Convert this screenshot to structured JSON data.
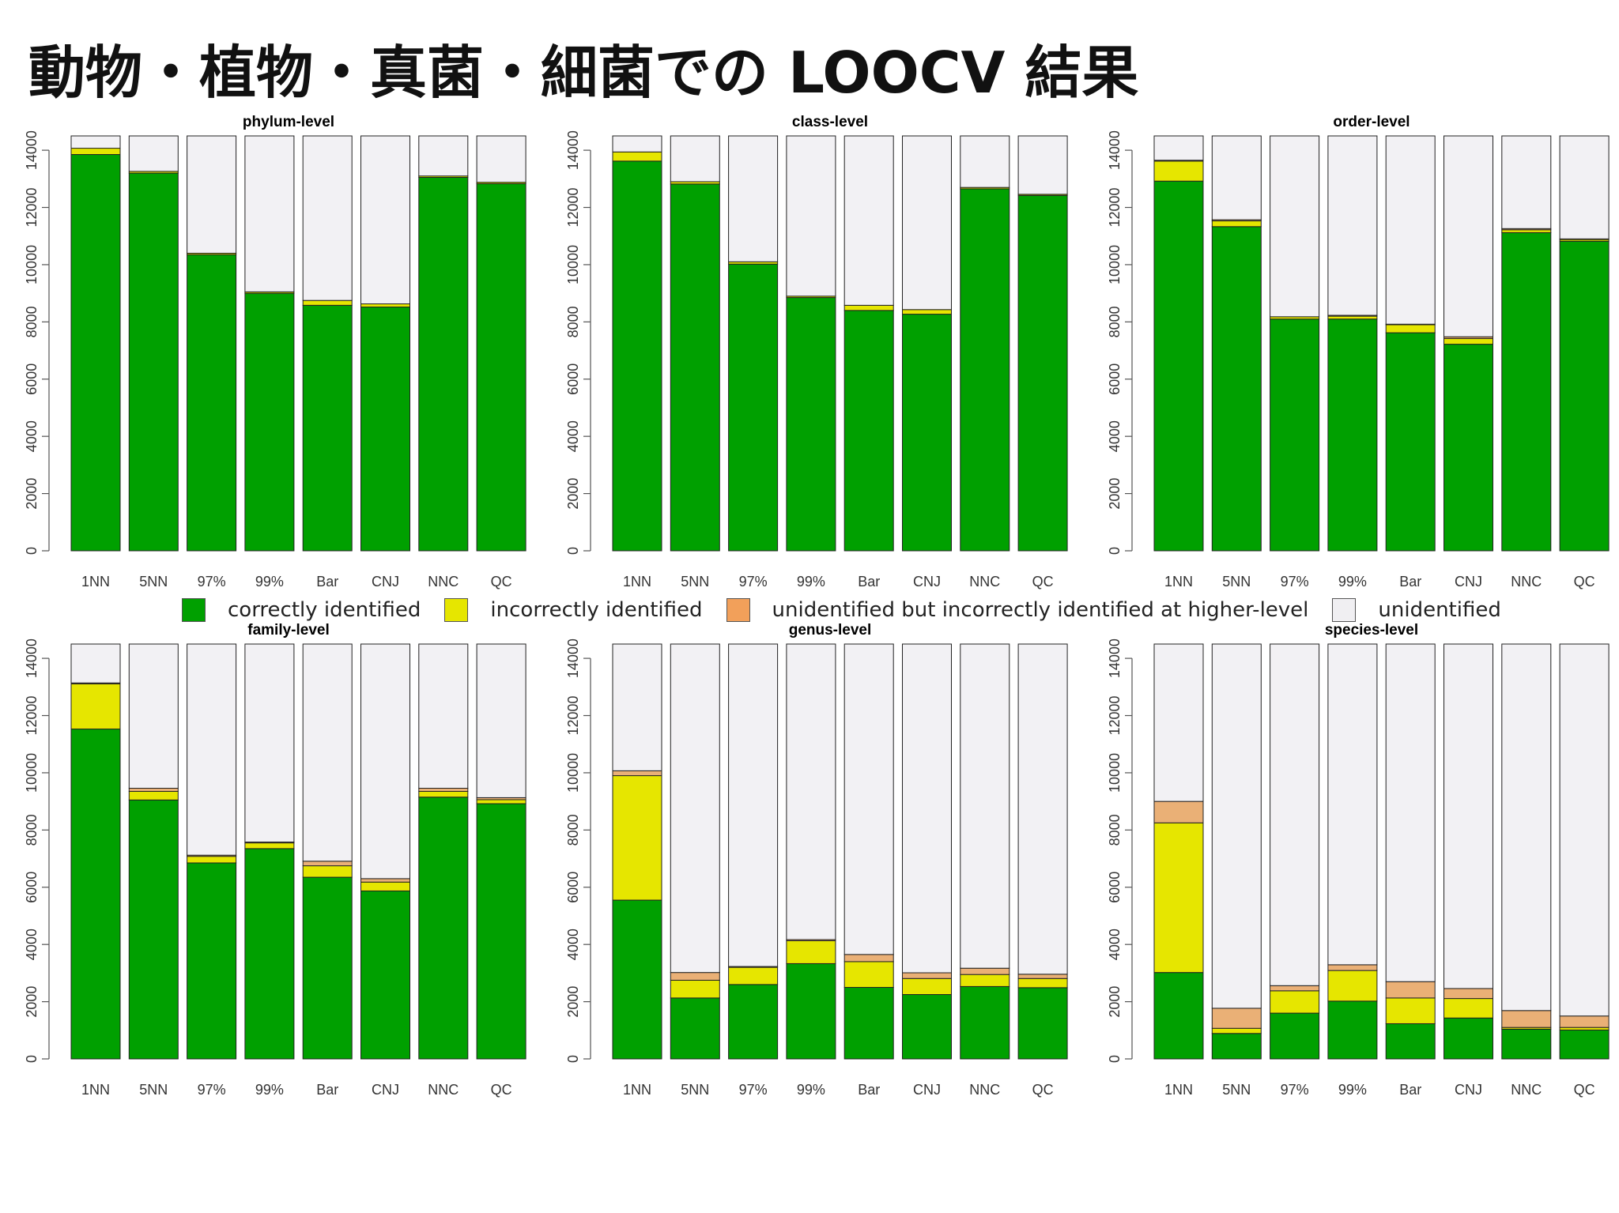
{
  "title": "動物・植物・真菌・細菌での LOOCV 結果",
  "legend": [
    {
      "label": "correctly identified",
      "color": "#00a000"
    },
    {
      "label": "incorrectly identified",
      "color": "#e6e600"
    },
    {
      "label": "unidentified but incorrectly identified at higher-level",
      "color": "#f2a05a"
    },
    {
      "label": "unidentified",
      "color": "#f0eff2"
    }
  ],
  "colors": {
    "correct": "#00a000",
    "incorrect": "#e6e600",
    "higher_level": "#eab076",
    "unidentified": "#f2f1f4"
  },
  "chart_data": [
    {
      "type": "bar",
      "stacked": true,
      "title": "phylum-level",
      "categories": [
        "1NN",
        "5NN",
        "97%",
        "99%",
        "Bar",
        "CNJ",
        "NNC",
        "QC"
      ],
      "ylim": [
        0,
        14000
      ],
      "yticks": [
        0,
        2000,
        4000,
        6000,
        8000,
        10000,
        12000,
        14000
      ],
      "total": 14500,
      "series": [
        {
          "name": "correctly identified",
          "values": [
            13850,
            13200,
            10350,
            9000,
            8580,
            8520,
            13050,
            12830
          ]
        },
        {
          "name": "incorrectly identified",
          "values": [
            220,
            60,
            50,
            50,
            170,
            110,
            50,
            50
          ]
        },
        {
          "name": "unidentified but incorrectly identified at higher-level",
          "values": [
            0,
            0,
            0,
            0,
            0,
            0,
            0,
            0
          ]
        }
      ]
    },
    {
      "type": "bar",
      "stacked": true,
      "title": "class-level",
      "categories": [
        "1NN",
        "5NN",
        "97%",
        "99%",
        "Bar",
        "CNJ",
        "NNC",
        "QC"
      ],
      "ylim": [
        0,
        14000
      ],
      "yticks": [
        0,
        2000,
        4000,
        6000,
        8000,
        10000,
        12000,
        14000
      ],
      "total": 14500,
      "series": [
        {
          "name": "correctly identified",
          "values": [
            13620,
            12820,
            10020,
            8850,
            8400,
            8270,
            12650,
            12420
          ]
        },
        {
          "name": "incorrectly identified",
          "values": [
            320,
            80,
            80,
            50,
            180,
            160,
            50,
            40
          ]
        },
        {
          "name": "unidentified but incorrectly identified at higher-level",
          "values": [
            0,
            0,
            0,
            0,
            0,
            0,
            0,
            0
          ]
        }
      ]
    },
    {
      "type": "bar",
      "stacked": true,
      "title": "order-level",
      "categories": [
        "1NN",
        "5NN",
        "97%",
        "99%",
        "Bar",
        "CNJ",
        "NNC",
        "QC"
      ],
      "ylim": [
        0,
        14000
      ],
      "yticks": [
        0,
        2000,
        4000,
        6000,
        8000,
        10000,
        12000,
        14000
      ],
      "total": 14500,
      "series": [
        {
          "name": "correctly identified",
          "values": [
            12920,
            11330,
            8100,
            8100,
            7620,
            7220,
            11120,
            10820
          ]
        },
        {
          "name": "incorrectly identified",
          "values": [
            700,
            200,
            80,
            100,
            280,
            200,
            100,
            60
          ]
        },
        {
          "name": "unidentified but incorrectly identified at higher-level",
          "values": [
            30,
            40,
            0,
            30,
            20,
            60,
            40,
            20
          ]
        }
      ]
    },
    {
      "type": "bar",
      "stacked": true,
      "title": "family-level",
      "categories": [
        "1NN",
        "5NN",
        "97%",
        "99%",
        "Bar",
        "CNJ",
        "NNC",
        "QC"
      ],
      "ylim": [
        0,
        14000
      ],
      "yticks": [
        0,
        2000,
        4000,
        6000,
        8000,
        10000,
        12000,
        14000
      ],
      "total": 14500,
      "series": [
        {
          "name": "correctly identified",
          "values": [
            11530,
            9050,
            6850,
            7350,
            6350,
            5870,
            9150,
            8920
          ]
        },
        {
          "name": "incorrectly identified",
          "values": [
            1580,
            300,
            230,
            200,
            400,
            310,
            200,
            140
          ]
        },
        {
          "name": "unidentified but incorrectly identified at higher-level",
          "values": [
            30,
            110,
            40,
            30,
            160,
            120,
            110,
            70
          ]
        }
      ]
    },
    {
      "type": "bar",
      "stacked": true,
      "title": "genus-level",
      "categories": [
        "1NN",
        "5NN",
        "97%",
        "99%",
        "Bar",
        "CNJ",
        "NNC",
        "QC"
      ],
      "ylim": [
        0,
        14000
      ],
      "yticks": [
        0,
        2000,
        4000,
        6000,
        8000,
        10000,
        12000,
        14000
      ],
      "total": 14500,
      "series": [
        {
          "name": "correctly identified",
          "values": [
            5550,
            2130,
            2600,
            3330,
            2500,
            2250,
            2530,
            2490
          ]
        },
        {
          "name": "incorrectly identified",
          "values": [
            4350,
            620,
            600,
            800,
            900,
            560,
            420,
            320
          ]
        },
        {
          "name": "unidentified but incorrectly identified at higher-level",
          "values": [
            170,
            270,
            30,
            40,
            250,
            200,
            220,
            150
          ]
        }
      ]
    },
    {
      "type": "bar",
      "stacked": true,
      "title": "species-level",
      "categories": [
        "1NN",
        "5NN",
        "97%",
        "99%",
        "Bar",
        "CNJ",
        "NNC",
        "QC"
      ],
      "ylim": [
        0,
        14000
      ],
      "yticks": [
        0,
        2000,
        4000,
        6000,
        8000,
        10000,
        12000,
        14000
      ],
      "total": 14500,
      "series": [
        {
          "name": "correctly identified",
          "values": [
            3020,
            890,
            1600,
            2020,
            1230,
            1430,
            1040,
            1010
          ]
        },
        {
          "name": "incorrectly identified",
          "values": [
            5230,
            180,
            780,
            1070,
            900,
            680,
            60,
            90
          ]
        },
        {
          "name": "unidentified but incorrectly identified at higher-level",
          "values": [
            750,
            700,
            180,
            200,
            570,
            350,
            590,
            400
          ]
        }
      ]
    }
  ]
}
